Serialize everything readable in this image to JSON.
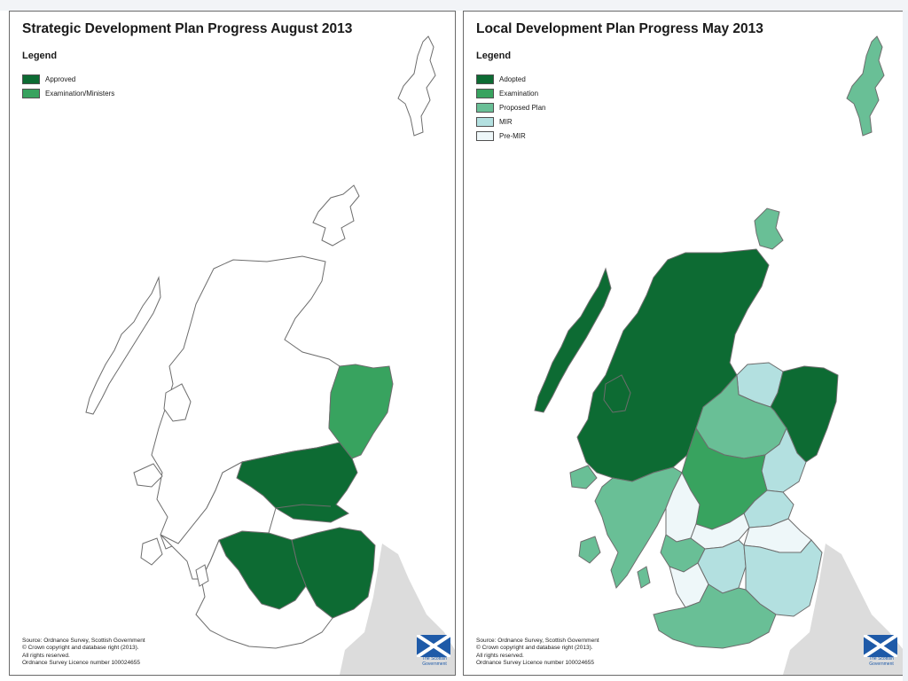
{
  "maps": [
    {
      "title": "Strategic Development Plan Progress August 2013",
      "legend_title": "Legend",
      "legend": [
        {
          "label": "Approved",
          "color": "#0d6b33"
        },
        {
          "label": "Examination/Ministers",
          "color": "#38a35f"
        }
      ],
      "categories_shown": [
        "Approved",
        "Examination/Ministers",
        "none"
      ],
      "source_lines": [
        "Source: Ordnance Survey, Scottish Government",
        "© Crown copyright and database right (2013).",
        "All rights reserved.",
        "Ordnance Survey Licence number 100024655"
      ],
      "logo_text": [
        "The Scottish",
        "Government"
      ]
    },
    {
      "title": "Local Development Plan Progress May 2013",
      "legend_title": "Legend",
      "legend": [
        {
          "label": "Adopted",
          "color": "#0d6b33"
        },
        {
          "label": "Examination",
          "color": "#38a35f"
        },
        {
          "label": "Proposed Plan",
          "color": "#69bf96"
        },
        {
          "label": "MIR",
          "color": "#b3e0e0"
        },
        {
          "label": "Pre-MIR",
          "color": "#eef7f9"
        }
      ],
      "source_lines": [
        "Source: Ordnance Survey, Scottish Government",
        "© Crown copyright and database right (2013).",
        "All rights reserved.",
        "Ordnance Survey Licence number 100024655"
      ],
      "logo_text": [
        "The Scottish",
        "Government"
      ]
    }
  ],
  "colors": {
    "border": "#6d6d6d",
    "england_land": "#dcdcdc",
    "no_plan": "#ffffff",
    "saltire_blue": "#1e5aa8"
  }
}
